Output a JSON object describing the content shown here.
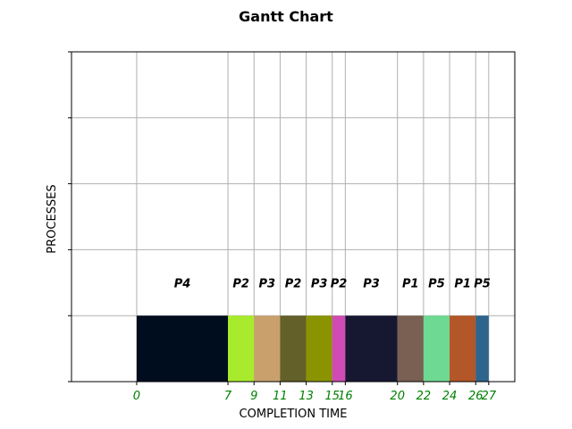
{
  "chart_data": {
    "type": "bar",
    "title": "Gantt Chart",
    "xlabel": "COMPLETION TIME",
    "ylabel": "PROCESSES",
    "xlim": [
      -5,
      29
    ],
    "ylim": [
      0,
      5
    ],
    "grid": true,
    "tick_color": "#008000",
    "x_ticks": [
      0,
      7,
      9,
      11,
      13,
      15,
      16,
      20,
      22,
      24,
      26,
      27
    ],
    "bar_y_range": [
      0,
      1
    ],
    "segments": [
      {
        "process": "P4",
        "start": 0,
        "end": 7,
        "color": "#000d1f"
      },
      {
        "process": "P2",
        "start": 7,
        "end": 9,
        "color": "#a8eb2d"
      },
      {
        "process": "P3",
        "start": 9,
        "end": 11,
        "color": "#c9a06c"
      },
      {
        "process": "P2",
        "start": 11,
        "end": 13,
        "color": "#636129"
      },
      {
        "process": "P3",
        "start": 13,
        "end": 15,
        "color": "#8a9400"
      },
      {
        "process": "P2",
        "start": 15,
        "end": 16,
        "color": "#d14bb4"
      },
      {
        "process": "P3",
        "start": 16,
        "end": 20,
        "color": "#161832"
      },
      {
        "process": "P1",
        "start": 20,
        "end": 22,
        "color": "#7a6052"
      },
      {
        "process": "P5",
        "start": 22,
        "end": 24,
        "color": "#6ed992"
      },
      {
        "process": "P1",
        "start": 24,
        "end": 26,
        "color": "#b45728"
      },
      {
        "process": "P5",
        "start": 26,
        "end": 27,
        "color": "#2e658c"
      }
    ]
  }
}
